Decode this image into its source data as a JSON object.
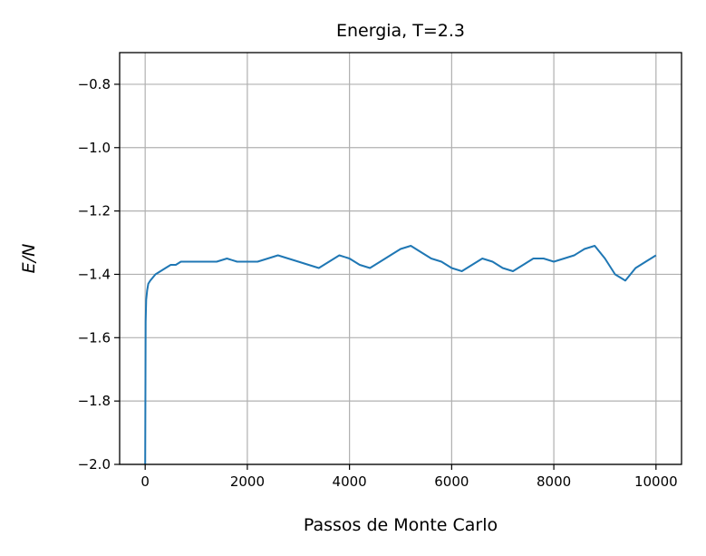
{
  "chart_data": {
    "type": "line",
    "title": "Energia, T=2.3",
    "xlabel": "Passos de Monte Carlo",
    "ylabel": "E/N",
    "xlim": [
      -500,
      10500
    ],
    "ylim": [
      -2.0,
      -0.7
    ],
    "xticks": [
      0,
      2000,
      4000,
      6000,
      8000,
      10000
    ],
    "xtick_labels": [
      "0",
      "2000",
      "4000",
      "6000",
      "8000",
      "10000"
    ],
    "yticks": [
      -2.0,
      -1.8,
      -1.6,
      -1.4,
      -1.2,
      -1.0,
      -0.8
    ],
    "ytick_labels": [
      "−2.0",
      "−1.8",
      "−1.6",
      "−1.4",
      "−1.2",
      "−1.0",
      "−0.8"
    ],
    "grid": true,
    "series_color": "#1f77b4",
    "series": [
      {
        "x": [
          0,
          10,
          20,
          40,
          60,
          100,
          150,
          200,
          300,
          400,
          500,
          600,
          700,
          800,
          900,
          1000,
          1200,
          1400,
          1600,
          1800,
          2000,
          2200,
          2400,
          2600,
          2800,
          3000,
          3200,
          3400,
          3600,
          3800,
          4000,
          4200,
          4400,
          4600,
          4800,
          5000,
          5200,
          5400,
          5600,
          5800,
          6000,
          6200,
          6400,
          6600,
          6800,
          7000,
          7200,
          7400,
          7600,
          7800,
          8000,
          8200,
          8400,
          8600,
          8800,
          9000,
          9200,
          9400,
          9600,
          9800,
          10000
        ],
        "y": [
          -2.0,
          -1.55,
          -1.48,
          -1.45,
          -1.43,
          -1.42,
          -1.41,
          -1.4,
          -1.39,
          -1.38,
          -1.37,
          -1.37,
          -1.36,
          -1.36,
          -1.36,
          -1.36,
          -1.36,
          -1.36,
          -1.35,
          -1.36,
          -1.36,
          -1.36,
          -1.35,
          -1.34,
          -1.35,
          -1.36,
          -1.37,
          -1.38,
          -1.36,
          -1.34,
          -1.35,
          -1.37,
          -1.38,
          -1.36,
          -1.34,
          -1.32,
          -1.31,
          -1.33,
          -1.35,
          -1.36,
          -1.38,
          -1.39,
          -1.37,
          -1.35,
          -1.36,
          -1.38,
          -1.39,
          -1.37,
          -1.35,
          -1.35,
          -1.36,
          -1.35,
          -1.34,
          -1.32,
          -1.31,
          -1.35,
          -1.4,
          -1.42,
          -1.38,
          -1.36,
          -1.34
        ]
      }
    ]
  }
}
